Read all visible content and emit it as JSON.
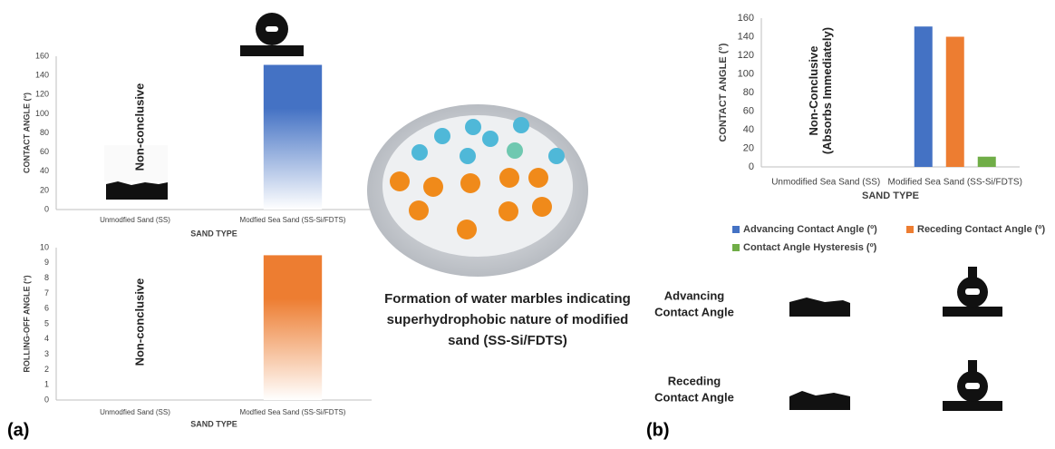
{
  "chart_data": [
    {
      "type": "bar",
      "ylabel": "CONTACT ANGLE (°)",
      "xlabel": "SAND TYPE",
      "categories": [
        "Unmodfied Sand (SS)",
        "Modfied Sea Sand (SS-Si/FDTS)"
      ],
      "values": [
        null,
        151
      ],
      "color": "#4472c4",
      "gradient": true,
      "ylim": [
        0,
        160
      ],
      "yticks": [
        0,
        20,
        40,
        60,
        80,
        100,
        120,
        140,
        160
      ],
      "annotation": [
        "Non-conclusive"
      ]
    },
    {
      "type": "bar",
      "ylabel": "ROLLING-OFF ANGLE (°)",
      "xlabel": "SAND TYPE",
      "categories": [
        "Unmodfied Sand (SS)",
        "Modfied Sea Sand (SS-Si/FDTS)"
      ],
      "values": [
        null,
        9.5
      ],
      "color": "#ed7d31",
      "gradient": true,
      "ylim": [
        0,
        10
      ],
      "yticks": [
        0,
        1,
        2,
        3,
        4,
        5,
        6,
        7,
        8,
        9,
        10
      ],
      "annotation": [
        "Non-conclusive"
      ]
    },
    {
      "type": "grouped_bar",
      "ylabel": "CONTACT ANGLE (°)",
      "xlabel": "SAND TYPE",
      "categories": [
        "Unmodified Sea Sand (SS)",
        "Modified Sea Sand (SS-Si/FDTS)"
      ],
      "series": [
        {
          "name": "Advancing Contact Angle (º)",
          "color": "#4472c4",
          "values": [
            null,
            151
          ]
        },
        {
          "name": "Receding Contact Angle (º)",
          "color": "#ed7d31",
          "values": [
            null,
            140
          ]
        },
        {
          "name": "Contact Angle Hysteresis (º)",
          "color": "#70ad47",
          "values": [
            null,
            11
          ]
        }
      ],
      "ylim": [
        0,
        160
      ],
      "yticks": [
        0,
        20,
        40,
        60,
        80,
        100,
        120,
        140,
        160
      ],
      "annotation": [
        "Non-Conclusive",
        "(Absorbs Immediately)"
      ]
    }
  ],
  "caption": [
    "Formation of water marbles indicating",
    "superhydrophobic nature of modified",
    "sand (SS-Si/FDTS)"
  ],
  "panel_labels": [
    "(a)",
    "(b)"
  ],
  "image_labels": [
    [
      "Advancing",
      "Contact Angle"
    ],
    [
      "Receding",
      "Contact Angle"
    ]
  ]
}
